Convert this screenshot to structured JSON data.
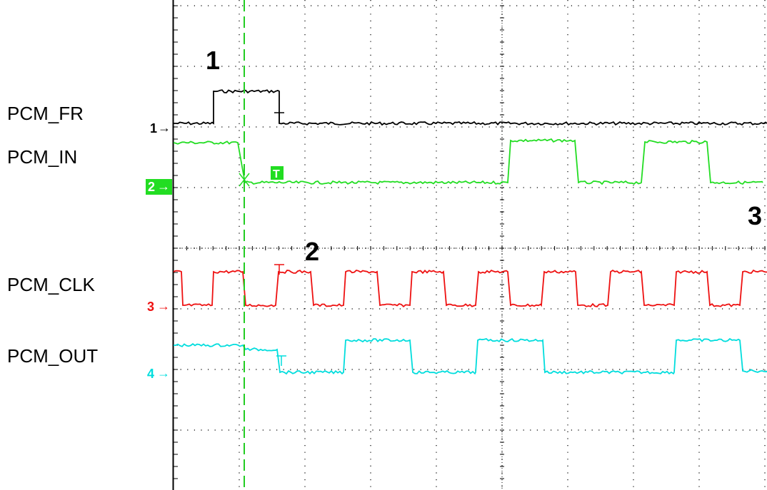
{
  "signals": [
    {
      "label": "PCM_FR",
      "channel": "1",
      "color": "#000000"
    },
    {
      "label": "PCM_IN",
      "channel": "2",
      "color": "#22dd22",
      "highlighted": true
    },
    {
      "label": "PCM_CLK",
      "channel": "3",
      "color": "#ee1111"
    },
    {
      "label": "PCM_OUT",
      "channel": "4",
      "color": "#00dddd"
    }
  ],
  "markers": [
    "1",
    "2",
    "3"
  ],
  "trigger_label": "T",
  "cursor_color": "#22cc22"
}
